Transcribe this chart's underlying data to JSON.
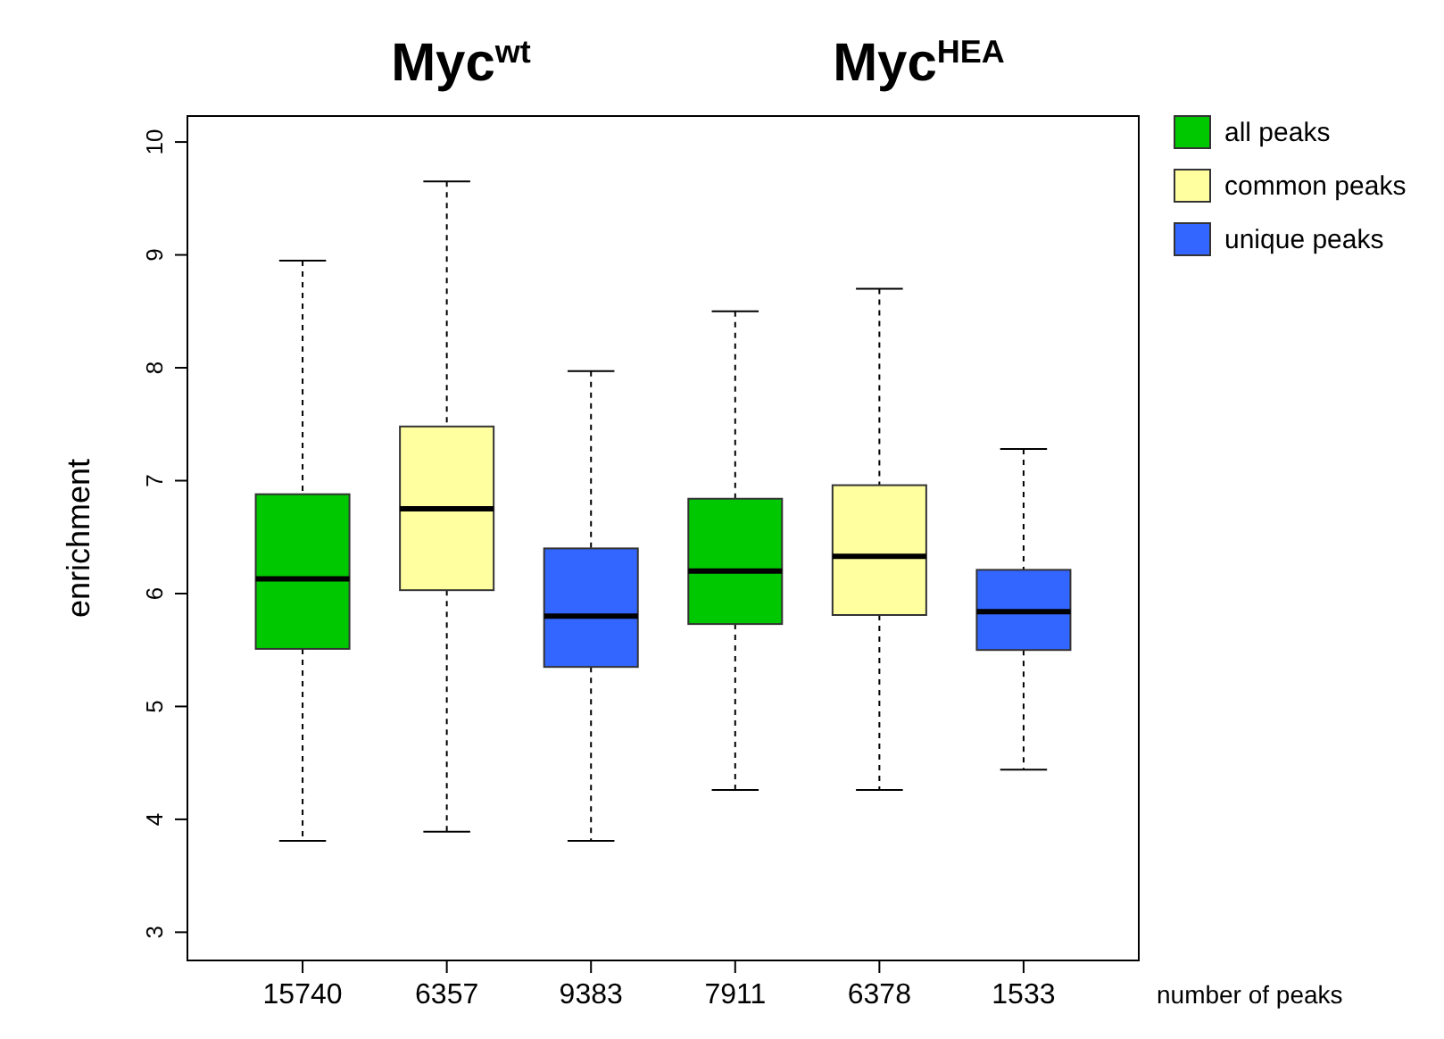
{
  "chart_data": {
    "type": "box",
    "categories": [
      "15740",
      "6357",
      "9383",
      "7911",
      "6378",
      "1533"
    ],
    "xlabel": "number of peaks",
    "ylabel": "enrichment",
    "ylim": [
      2.75,
      10.23
    ],
    "yticks": [
      3,
      4,
      5,
      6,
      7,
      8,
      9,
      10
    ],
    "grid": false,
    "legend": "top right",
    "annotations": [
      "Myc$^{wt}$",
      "Myc$^{HEA}$"
    ],
    "series": [
      {
        "name": "all peaks",
        "color": "#00c800",
        "boxes": [
          {
            "low": 3.81,
            "q1": 5.51,
            "median": 6.13,
            "q3": 6.88,
            "high": 8.95
          },
          null,
          null,
          {
            "low": 4.26,
            "q1": 5.73,
            "median": 6.2,
            "q3": 6.84,
            "high": 8.5
          },
          null,
          null
        ]
      },
      {
        "name": "common peaks",
        "color": "#ffffa0",
        "boxes": [
          null,
          {
            "low": 3.89,
            "q1": 6.03,
            "median": 6.75,
            "q3": 7.48,
            "high": 9.65
          },
          null,
          null,
          {
            "low": 4.26,
            "q1": 5.81,
            "median": 6.33,
            "q3": 6.96,
            "high": 8.7
          },
          null
        ]
      },
      {
        "name": "unique peaks",
        "color": "#3366ff",
        "boxes": [
          null,
          null,
          {
            "low": 3.81,
            "q1": 5.35,
            "median": 5.8,
            "q3": 6.4,
            "high": 7.97
          },
          null,
          null,
          {
            "low": 4.44,
            "q1": 5.5,
            "median": 5.84,
            "q3": 6.21,
            "high": 7.28
          }
        ]
      }
    ]
  }
}
